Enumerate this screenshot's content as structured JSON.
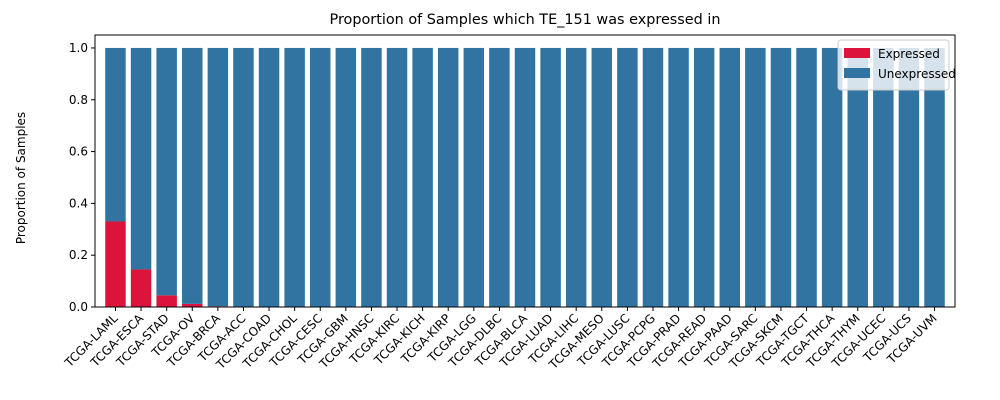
{
  "chart_data": {
    "type": "bar",
    "stacked": true,
    "title": "Proportion of Samples which TE_151 was expressed in",
    "xlabel": "",
    "ylabel": "Proportion of Samples",
    "ylim": [
      0,
      1.05
    ],
    "yticks": [
      "0.0",
      "0.2",
      "0.4",
      "0.6",
      "0.8",
      "1.0"
    ],
    "grid": false,
    "legend_position": "top-right",
    "categories": [
      "TCGA-LAML",
      "TCGA-ESCA",
      "TCGA-STAD",
      "TCGA-OV",
      "TCGA-BRCA",
      "TCGA-ACC",
      "TCGA-COAD",
      "TCGA-CHOL",
      "TCGA-CESC",
      "TCGA-GBM",
      "TCGA-HNSC",
      "TCGA-KIRC",
      "TCGA-KICH",
      "TCGA-KIRP",
      "TCGA-LGG",
      "TCGA-DLBC",
      "TCGA-BLCA",
      "TCGA-LUAD",
      "TCGA-LIHC",
      "TCGA-MESO",
      "TCGA-LUSC",
      "TCGA-PCPG",
      "TCGA-PRAD",
      "TCGA-READ",
      "TCGA-PAAD",
      "TCGA-SARC",
      "TCGA-SKCM",
      "TCGA-TGCT",
      "TCGA-THCA",
      "TCGA-THYM",
      "TCGA-UCEC",
      "TCGA-UCS",
      "TCGA-UVM"
    ],
    "series": [
      {
        "name": "Expressed",
        "color": "#dc143c",
        "values": [
          0.33,
          0.145,
          0.045,
          0.012,
          0.003,
          0,
          0,
          0,
          0,
          0,
          0,
          0,
          0,
          0,
          0,
          0,
          0,
          0,
          0,
          0,
          0,
          0,
          0,
          0,
          0,
          0,
          0,
          0,
          0,
          0,
          0,
          0,
          0
        ]
      },
      {
        "name": "Unexpressed",
        "color": "#3274a1",
        "values": [
          0.67,
          0.855,
          0.955,
          0.988,
          0.997,
          1,
          1,
          1,
          1,
          1,
          1,
          1,
          1,
          1,
          1,
          1,
          1,
          1,
          1,
          1,
          1,
          1,
          1,
          1,
          1,
          1,
          1,
          1,
          1,
          1,
          1,
          1,
          1
        ]
      }
    ]
  }
}
